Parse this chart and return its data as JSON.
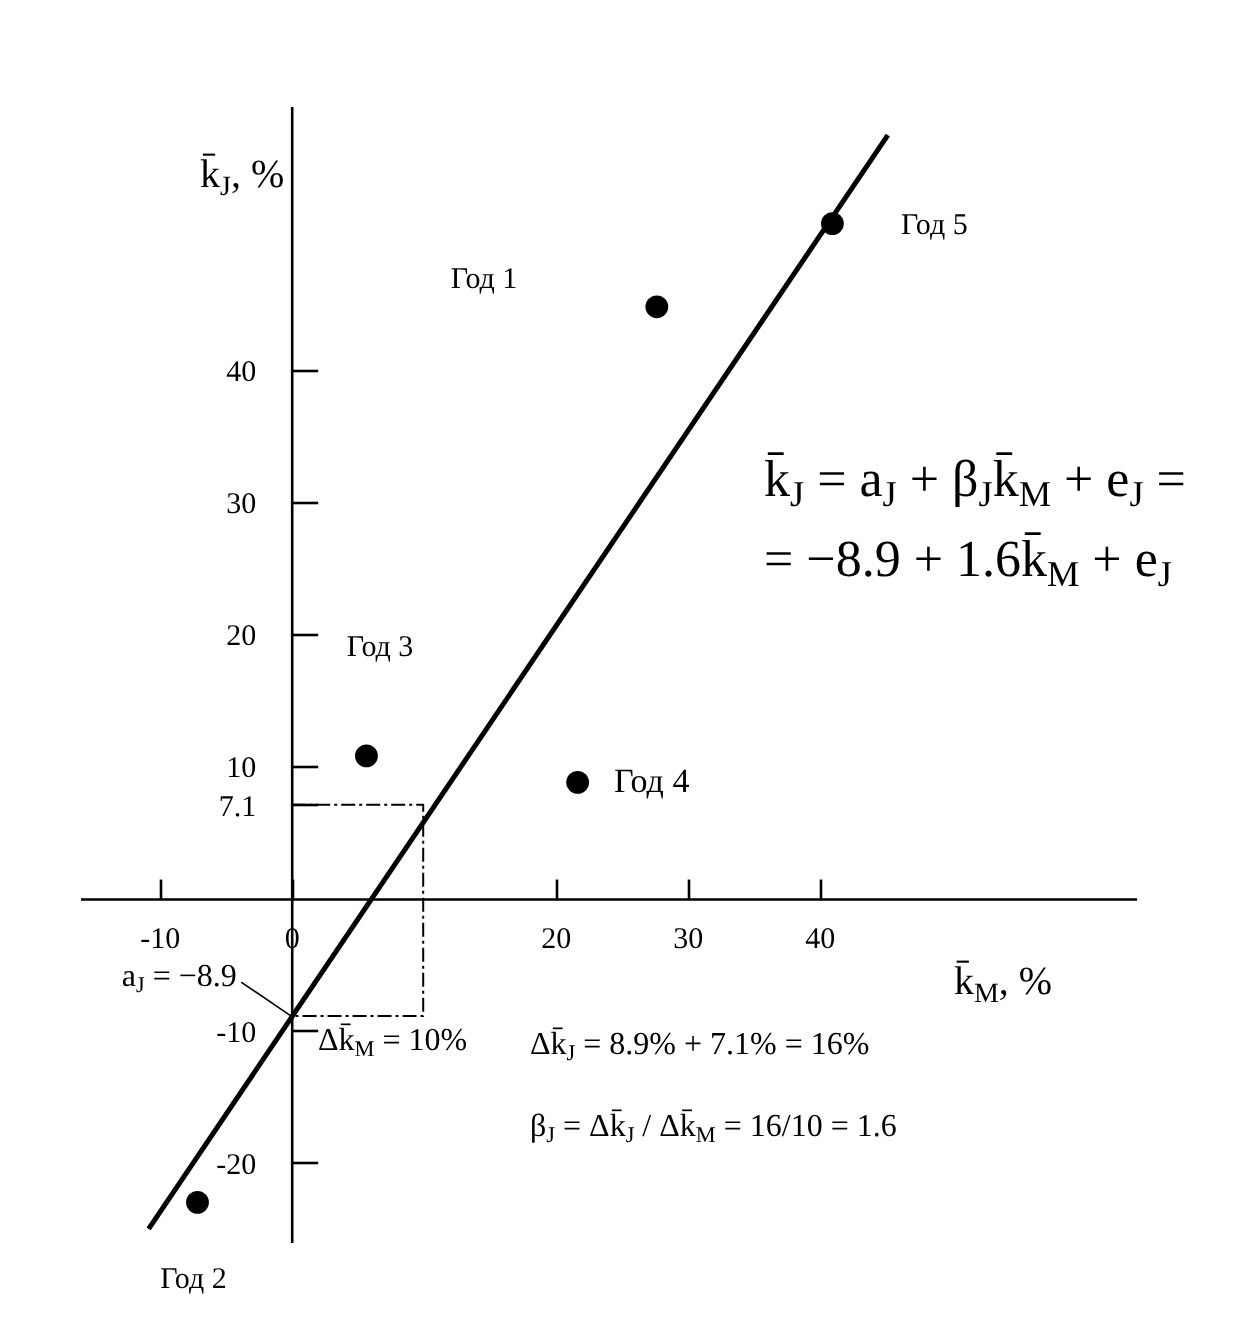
{
  "chart_data": {
    "type": "scatter",
    "xlabel": "k̄$_{M}$, %",
    "ylabel": "k̄$_{J}$, %",
    "xlim": [
      -16,
      64
    ],
    "ylim": [
      -26,
      60
    ],
    "xticks": [
      -10,
      0,
      20,
      30,
      40
    ],
    "yticks": [
      -20,
      -10,
      7.1,
      10,
      20,
      30,
      40
    ],
    "series": [
      {
        "type": "line",
        "x": [
          -10.8,
          45.2
        ],
        "values": [
          -25.0,
          57.8
        ],
        "color": "#000000"
      },
      {
        "type": "line",
        "x": [
          0,
          10,
          10,
          0
        ],
        "values": [
          7.1,
          7.1,
          -8.9,
          -8.9
        ],
        "color": "#000000",
        "line_style": "dashed"
      },
      {
        "x": [
          27.7,
          -7.1,
          5.7,
          21.7,
          41.0
        ],
        "values": [
          44.8,
          -23.0,
          10.8,
          8.8,
          51.1
        ],
        "color": "#000000",
        "marker": "circle"
      }
    ],
    "annotations": [
      "Год 1",
      {
        "text": "Год 2",
        "x": -7.1,
        "y": -23.0
      },
      "Год 3",
      {
        "text": "Год 4",
        "x": 21.7,
        "y": 8.8
      },
      {
        "text": "Год 5",
        "x": 41.0,
        "y": 51.1
      },
      {
        "text": "a$_{J}$ = −8.9",
        "x": 0,
        "y": -8.9
      },
      "Δk̄$_{M}$ = 10%",
      "Δk̄$_{J}$ = 8.9% + 7.1% = 16%",
      "β$_{J}$ = Δk̄$_{J}$ / Δk̄$_{M}$ = 16/10 = 1.6",
      "k̄$_{J}$ = a$_{J}$ + β$_{J}$k̄$_{M}$ + e$_{J}$ =",
      "= −8.9 + 1.6k̄$_{M}$ + e$_{J}$"
    ]
  }
}
